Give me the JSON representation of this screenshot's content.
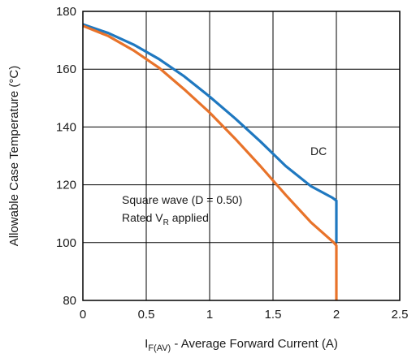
{
  "chart_data": {
    "type": "line",
    "xlabel_main": "I",
    "xlabel_sub": "F(AV)",
    "xlabel_rest": " - Average Forward Current (A)",
    "ylabel": "Allowable Case Temperature (°C)",
    "xlim": [
      0,
      2.5
    ],
    "ylim": [
      80,
      180
    ],
    "xticks": [
      0,
      0.5,
      1,
      1.5,
      2,
      2.5
    ],
    "yticks": [
      80,
      100,
      120,
      140,
      160,
      180
    ],
    "xtick_labels": [
      "0",
      "0.5",
      "1",
      "1.5",
      "2",
      "2.5"
    ],
    "ytick_labels": [
      "80",
      "100",
      "120",
      "140",
      "160",
      "180"
    ],
    "grid": true,
    "series": [
      {
        "name": "DC",
        "color": "#1f78c0",
        "x": [
          0,
          0.2,
          0.4,
          0.6,
          0.8,
          1.0,
          1.2,
          1.4,
          1.6,
          1.8,
          1.97,
          2.0,
          2.0
        ],
        "y": [
          175.5,
          172.5,
          168.5,
          163.5,
          157.5,
          150.5,
          143,
          135,
          126.5,
          119.5,
          115.5,
          114.5,
          100
        ]
      },
      {
        "name": "Square wave (D = 0.50)",
        "color": "#e8732a",
        "x": [
          0,
          0.2,
          0.4,
          0.6,
          0.8,
          1.0,
          1.2,
          1.4,
          1.6,
          1.8,
          1.98,
          2.0,
          2.0
        ],
        "y": [
          175,
          171.5,
          166.5,
          160.5,
          153,
          145,
          136,
          126.5,
          116.5,
          107,
          100,
          99,
          80
        ]
      }
    ],
    "annotations": {
      "dc_label": "DC",
      "square_line1": "Square wave (D = 0.50)",
      "square_line2_main": "Rated V",
      "square_line2_sub": "R",
      "square_line2_rest": " applied"
    }
  }
}
